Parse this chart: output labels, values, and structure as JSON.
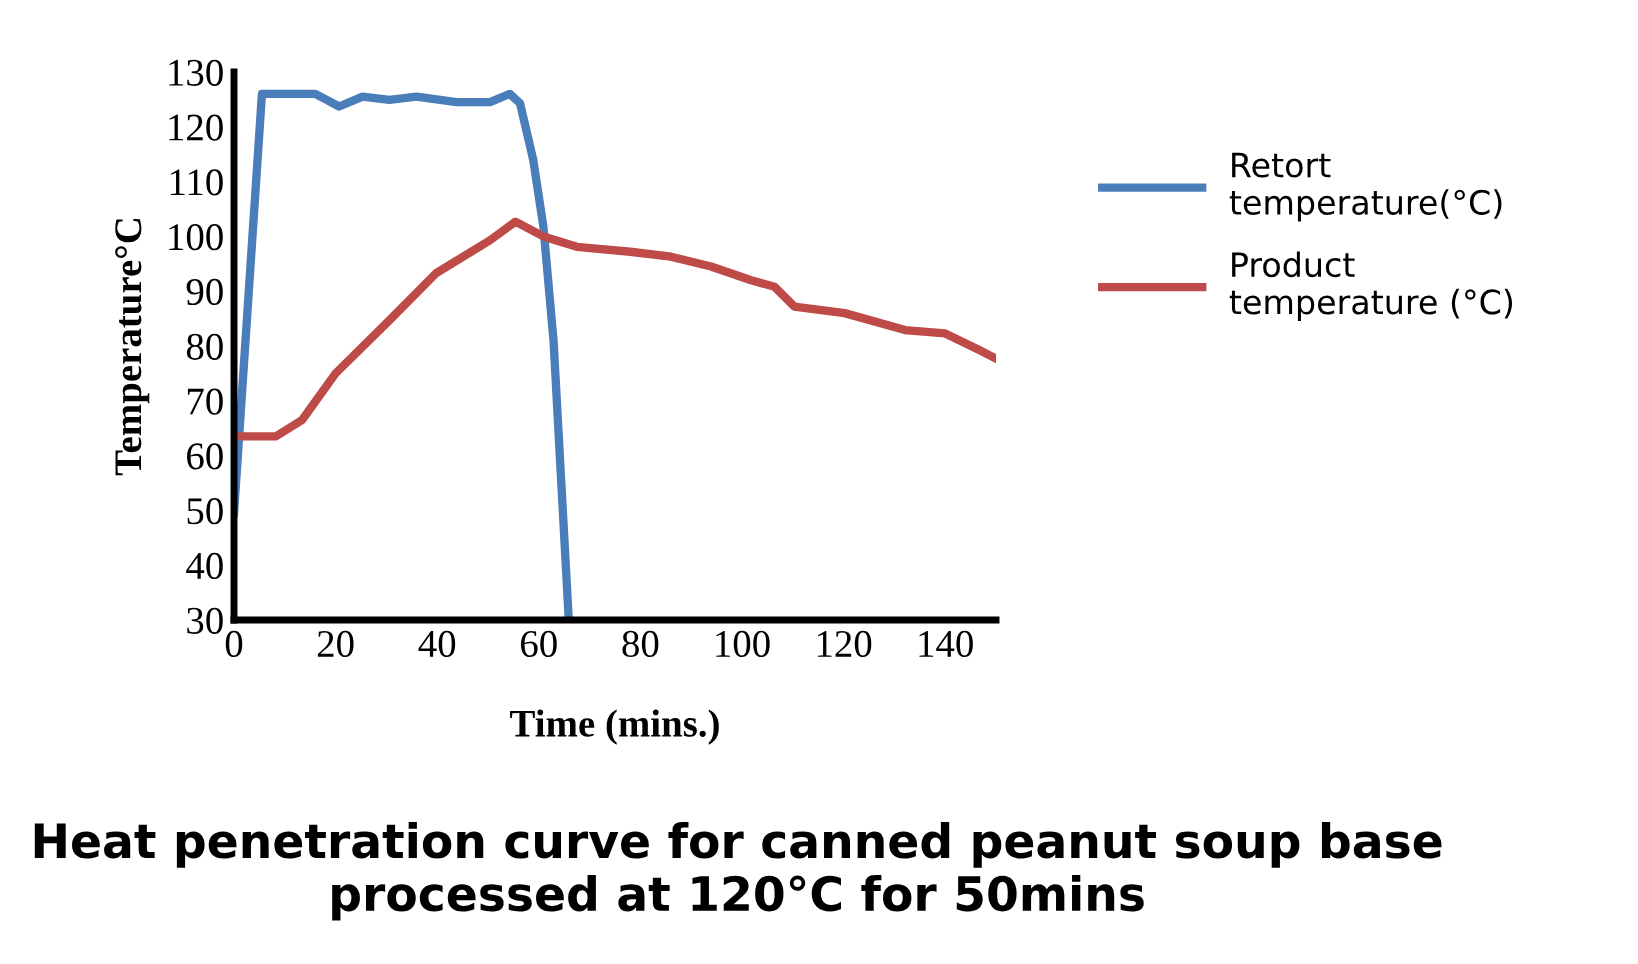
{
  "chart_data": {
    "type": "line",
    "xlabel": "Time (mins.)",
    "ylabel": "Temperature°C",
    "xlim": [
      0,
      150
    ],
    "xticks": [
      0,
      20,
      40,
      60,
      80,
      100,
      120,
      140
    ],
    "ylim": [
      30,
      130
    ],
    "yticks": [
      30,
      40,
      50,
      60,
      70,
      80,
      90,
      100,
      110,
      120,
      130
    ],
    "grid": false,
    "legend": "right",
    "marker": "none",
    "line_style": "solid",
    "annotations": [
      "Heat penetration curve for canned peanut soup base processed at 120°C for 50mins"
    ],
    "series": [
      {
        "name": "Retort temperature(°C)",
        "color": "#4a7ebb",
        "x": [
          0,
          5.5,
          13.4,
          16,
          20.7,
          25.3,
          30.6,
          35.9,
          43.8,
          50.4,
          54.3,
          56.3,
          58.9,
          60.9,
          62.9,
          65.9
        ],
        "values": [
          49.5,
          126,
          126,
          126,
          123.7,
          125.5,
          124.9,
          125.5,
          124.5,
          124.5,
          126,
          124.3,
          114,
          101.8,
          81,
          30
        ]
      },
      {
        "name": "Product temperature (°C)",
        "color": "#be4b48",
        "x": [
          0,
          8.2,
          13.4,
          20,
          30.6,
          39.8,
          50.4,
          55.4,
          60.9,
          67.5,
          78,
          86,
          93.9,
          101.8,
          106.4,
          110.3,
          120.2,
          132.1,
          140,
          146.6,
          150
        ],
        "values": [
          63.5,
          63.5,
          66.5,
          75,
          84.7,
          93.3,
          99.3,
          102.7,
          100,
          98.1,
          97.2,
          96.3,
          94.5,
          92,
          90.8,
          87.2,
          86,
          82.9,
          82.3,
          79.3,
          77.7
        ]
      }
    ]
  }
}
